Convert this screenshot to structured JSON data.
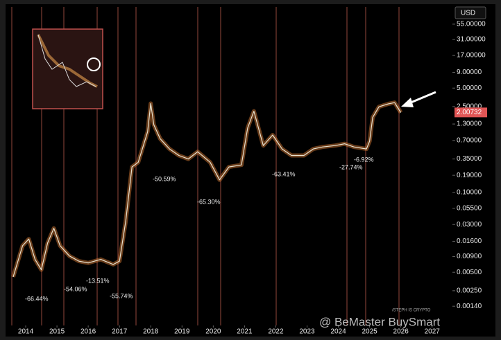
{
  "chart_data": {
    "type": "line",
    "currency": "USD",
    "log_scale": true,
    "color": "#e8863a",
    "x": [
      2013.6,
      2013.9,
      2014.1,
      2014.3,
      2014.5,
      2014.7,
      2014.9,
      2015.1,
      2015.4,
      2015.7,
      2016.0,
      2016.4,
      2016.8,
      2017.0,
      2017.2,
      2017.4,
      2017.6,
      2017.9,
      2018.0,
      2018.1,
      2018.3,
      2018.6,
      2018.9,
      2019.2,
      2019.5,
      2019.9,
      2020.2,
      2020.5,
      2020.9,
      2021.1,
      2021.3,
      2021.6,
      2021.9,
      2022.2,
      2022.5,
      2022.9,
      2023.2,
      2023.5,
      2023.9,
      2024.2,
      2024.5,
      2024.9,
      2025.0,
      2025.1,
      2025.3,
      2025.6,
      2025.8,
      2025.9,
      2026.0
    ],
    "values": [
      0.0042,
      0.0135,
      0.0174,
      0.0081,
      0.0055,
      0.015,
      0.026,
      0.0135,
      0.0092,
      0.0076,
      0.0071,
      0.0081,
      0.0067,
      0.0076,
      0.034,
      0.26,
      0.31,
      0.97,
      2.8,
      1.26,
      0.75,
      0.51,
      0.4,
      0.35,
      0.46,
      0.31,
      0.16,
      0.26,
      0.28,
      1.12,
      2.1,
      0.58,
      0.86,
      0.51,
      0.4,
      0.4,
      0.51,
      0.55,
      0.58,
      0.62,
      0.55,
      0.51,
      0.68,
      1.67,
      2.48,
      2.77,
      2.9,
      2.4,
      2.0
    ],
    "last_price": 2.00732,
    "xlim": [
      2013.4,
      2027.65
    ],
    "xticks": [
      2014,
      2015,
      2016,
      2017,
      2018,
      2019,
      2020,
      2021,
      2022,
      2023,
      2024,
      2025,
      2026,
      2027
    ],
    "ylim": [
      0.00068,
      105
    ],
    "yticks": [
      {
        "value": 55,
        "label": "55.00000"
      },
      {
        "value": 31,
        "label": "31.00000"
      },
      {
        "value": 17,
        "label": "17.00000"
      },
      {
        "value": 9,
        "label": "9.00000"
      },
      {
        "value": 5,
        "label": "5.00000"
      },
      {
        "value": 2.5,
        "label": "2.50000"
      },
      {
        "value": 1.3,
        "label": "1.30000"
      },
      {
        "value": 0.7,
        "label": "0.70000"
      },
      {
        "value": 0.35,
        "label": "0.35000"
      },
      {
        "value": 0.19,
        "label": "0.19000"
      },
      {
        "value": 0.1,
        "label": "0.10000"
      },
      {
        "value": 0.055,
        "label": "0.05500"
      },
      {
        "value": 0.03,
        "label": "0.03000"
      },
      {
        "value": 0.016,
        "label": "0.01600"
      },
      {
        "value": 0.009,
        "label": "0.00900"
      },
      {
        "value": 0.005,
        "label": "0.00500"
      },
      {
        "value": 0.0025,
        "label": "0.00250"
      },
      {
        "value": 0.0014,
        "label": "0.00140"
      }
    ],
    "annotations": {
      "values": [
        -66.44,
        -54.06,
        -13.51,
        -55.74,
        -50.59,
        -65.3,
        -63.41,
        -27.74,
        -6.92
      ],
      "value_labels": [
        "-66.44%",
        "-54.06%",
        "-13.51%",
        "-55.74%",
        "-50.59%",
        "-65.30%",
        "-63.41%",
        "-27.74%",
        "-6.92%"
      ]
    },
    "credit": "/STEPH IS CRYPTO",
    "watermark": "@ BeMaster BuySmart"
  }
}
